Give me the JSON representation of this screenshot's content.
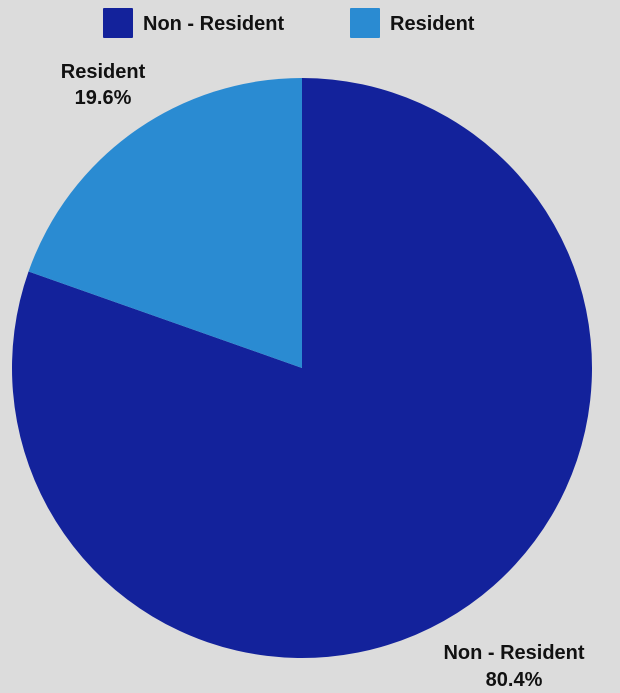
{
  "chart_data": {
    "type": "pie",
    "title": "",
    "legend_position": "top",
    "slices": [
      {
        "label": "Non - Resident",
        "value": 80.4,
        "value_label": "80.4%",
        "color": "#13229b"
      },
      {
        "label": "Resident",
        "value": 19.6,
        "value_label": "19.6%",
        "color": "#2a8bd2"
      }
    ]
  }
}
